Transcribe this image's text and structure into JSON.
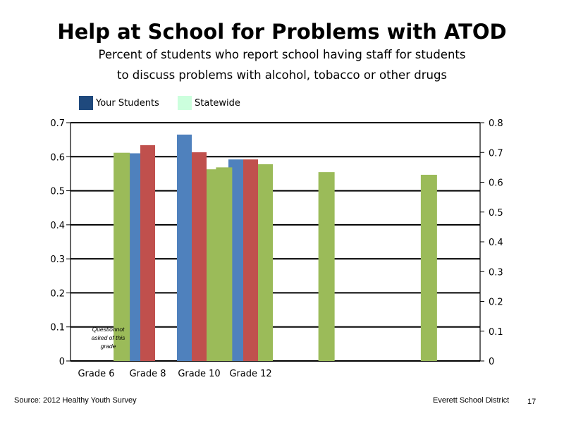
{
  "title": "Help at School for Problems with ATOD",
  "subtitle_lines": [
    "Percent of students who report school having staff for students",
    "to discuss problems with alcohol, tobacco or other drugs"
  ],
  "legend": [
    {
      "label": "Your Students",
      "color": "#1f497d"
    },
    {
      "label": "Statewide",
      "color": "#ccffdd"
    }
  ],
  "chart_data": {
    "type": "bar",
    "categories": [
      "Grade 6",
      "Grade 8",
      "Grade 10",
      "Grade 12"
    ],
    "primary_axis": {
      "ylim": [
        0,
        0.7
      ],
      "ticks": [
        "0",
        "0.1",
        "0.2",
        "0.3",
        "0.4",
        "0.5",
        "0.6",
        "0.7"
      ]
    },
    "secondary_axis": {
      "ylim": [
        0,
        0.8
      ],
      "ticks": [
        "0",
        "0.1",
        "0.2",
        "0.3",
        "0.4",
        "0.5",
        "0.6",
        "0.7",
        "0.8"
      ]
    },
    "series": [
      {
        "color": "#4f81bd",
        "axis": "primary",
        "values": [
          null,
          0.61,
          0.665,
          0.592
        ]
      },
      {
        "color": "#c0504d",
        "axis": "primary",
        "values": [
          null,
          0.634,
          0.613,
          0.592
        ]
      },
      {
        "color": "#9bbb59",
        "axis": "primary",
        "values": [
          null,
          null,
          0.563,
          0.578
        ]
      },
      {
        "color": "#9bbb59",
        "axis": "secondary",
        "values": [
          0.699,
          0.65,
          0.634,
          0.625
        ]
      }
    ],
    "annotation": "Question not asked of this grade",
    "grid": true,
    "legend_position": "top-left"
  },
  "footer": {
    "source": "Source: 2012 Healthy Youth Survey",
    "district": "Everett School District",
    "page_number": "17"
  }
}
